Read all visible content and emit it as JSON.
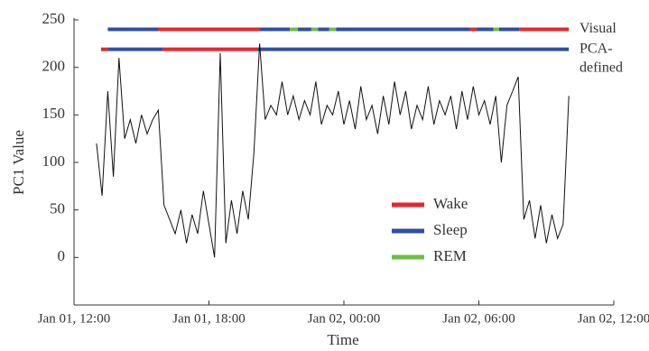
{
  "chart_data": {
    "type": "line",
    "xlabel": "Time",
    "ylabel": "PC1 Value",
    "xlim": [
      12,
      36
    ],
    "xticks": [
      {
        "value": 12,
        "label": "Jan 01, 12:00"
      },
      {
        "value": 18,
        "label": "Jan 01, 18:00"
      },
      {
        "value": 24,
        "label": "Jan 02, 00:00"
      },
      {
        "value": 30,
        "label": "Jan 02, 06:00"
      },
      {
        "value": 36,
        "label": "Jan 02, 12:00"
      }
    ],
    "ylim": [
      -50,
      250
    ],
    "yticks": [
      0,
      50,
      100,
      150,
      200,
      250
    ],
    "color": "#111111",
    "x": [
      13.0,
      13.25,
      13.5,
      13.75,
      14.0,
      14.25,
      14.5,
      14.75,
      15.0,
      15.25,
      15.5,
      15.75,
      16.0,
      16.25,
      16.5,
      16.75,
      17.0,
      17.25,
      17.5,
      17.75,
      18.0,
      18.25,
      18.5,
      18.75,
      19.0,
      19.25,
      19.5,
      19.75,
      20.0,
      20.25,
      20.5,
      20.75,
      21.0,
      21.25,
      21.5,
      21.75,
      22.0,
      22.25,
      22.5,
      22.75,
      23.0,
      23.25,
      23.5,
      23.75,
      24.0,
      24.25,
      24.5,
      24.75,
      25.0,
      25.25,
      25.5,
      25.75,
      26.0,
      26.25,
      26.5,
      26.75,
      27.0,
      27.25,
      27.5,
      27.75,
      28.0,
      28.25,
      28.5,
      28.75,
      29.0,
      29.25,
      29.5,
      29.75,
      30.0,
      30.25,
      30.5,
      30.75,
      31.0,
      31.25,
      31.5,
      31.75,
      32.0,
      32.25,
      32.5,
      32.75,
      33.0,
      33.25,
      33.5,
      33.75,
      34.0
    ],
    "values": [
      120,
      65,
      175,
      85,
      210,
      125,
      145,
      120,
      150,
      130,
      145,
      155,
      55,
      40,
      25,
      50,
      15,
      45,
      25,
      70,
      35,
      0,
      215,
      15,
      60,
      25,
      70,
      40,
      110,
      225,
      145,
      160,
      150,
      185,
      150,
      170,
      145,
      165,
      150,
      185,
      140,
      160,
      150,
      175,
      140,
      165,
      135,
      180,
      145,
      160,
      130,
      170,
      140,
      185,
      150,
      175,
      135,
      160,
      145,
      180,
      140,
      165,
      150,
      170,
      135,
      175,
      145,
      180,
      150,
      165,
      140,
      170,
      100,
      160,
      175,
      190,
      40,
      60,
      20,
      55,
      15,
      45,
      20,
      35,
      170
    ],
    "states": [
      {
        "name": "Wake",
        "color": "#e8262c"
      },
      {
        "name": "Sleep",
        "color": "#2f4fa2"
      },
      {
        "name": "REM",
        "color": "#6cbf47"
      }
    ],
    "tracks": [
      {
        "label": [
          "Visual"
        ],
        "y": 240,
        "segments": [
          {
            "start": 13.5,
            "end": 15.75,
            "state": "Sleep"
          },
          {
            "start": 15.75,
            "end": 20.25,
            "state": "Wake"
          },
          {
            "start": 20.25,
            "end": 21.6,
            "state": "Sleep"
          },
          {
            "start": 21.6,
            "end": 21.95,
            "state": "REM"
          },
          {
            "start": 21.95,
            "end": 22.55,
            "state": "Sleep"
          },
          {
            "start": 22.55,
            "end": 22.85,
            "state": "REM"
          },
          {
            "start": 22.85,
            "end": 23.35,
            "state": "Sleep"
          },
          {
            "start": 23.35,
            "end": 23.65,
            "state": "REM"
          },
          {
            "start": 23.65,
            "end": 29.6,
            "state": "Sleep"
          },
          {
            "start": 29.6,
            "end": 29.9,
            "state": "Wake"
          },
          {
            "start": 29.9,
            "end": 30.65,
            "state": "Sleep"
          },
          {
            "start": 30.65,
            "end": 30.9,
            "state": "REM"
          },
          {
            "start": 30.9,
            "end": 31.8,
            "state": "Sleep"
          },
          {
            "start": 31.8,
            "end": 34.0,
            "state": "Wake"
          }
        ]
      },
      {
        "label": [
          "PCA-",
          "defined"
        ],
        "y": 219,
        "segments": [
          {
            "start": 13.2,
            "end": 13.5,
            "state": "Wake"
          },
          {
            "start": 13.5,
            "end": 15.95,
            "state": "Sleep"
          },
          {
            "start": 15.95,
            "end": 20.15,
            "state": "Wake"
          },
          {
            "start": 20.15,
            "end": 34.0,
            "state": "Sleep"
          }
        ]
      }
    ]
  }
}
